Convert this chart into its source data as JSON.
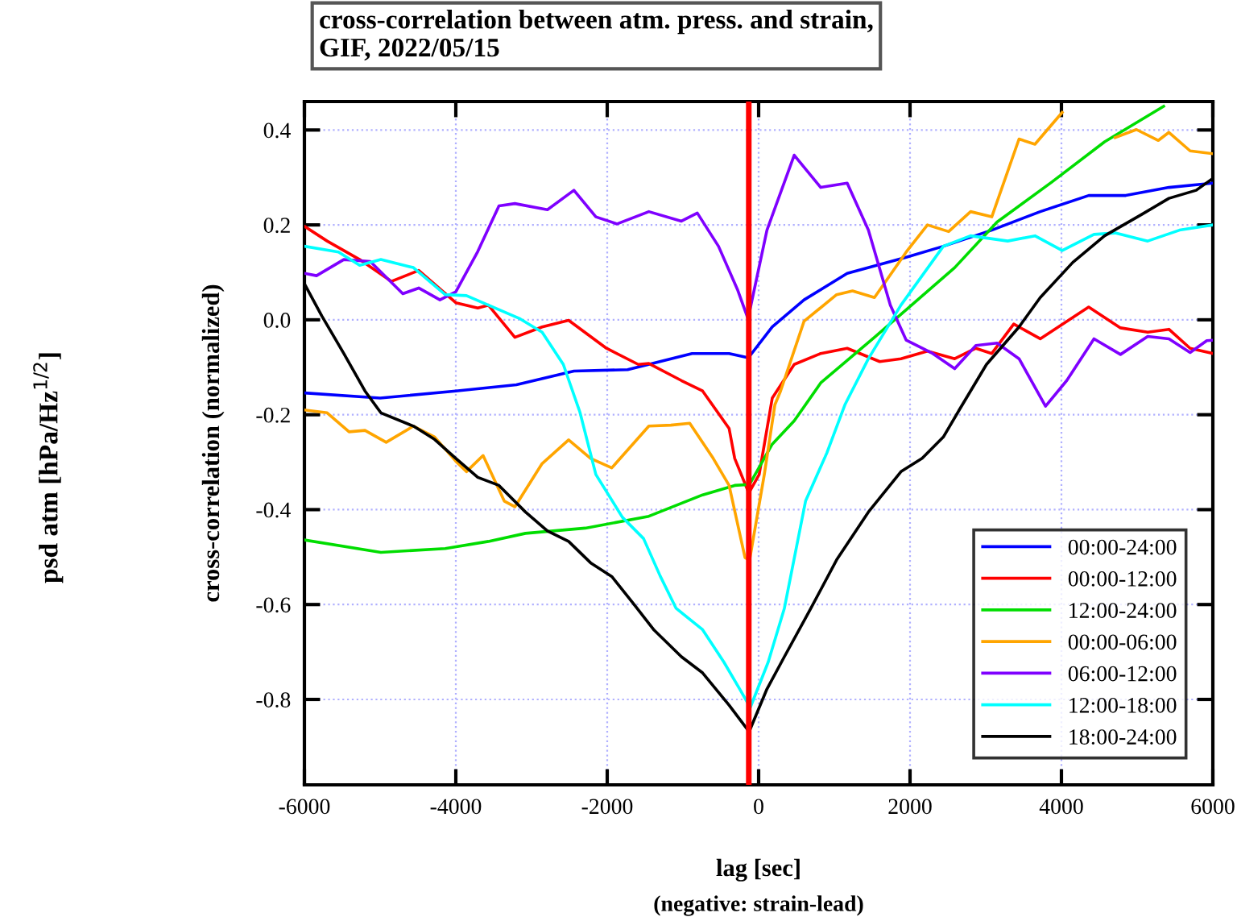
{
  "chart_data": {
    "type": "line",
    "title": "cross-correlation between atm. press. and strain,\nGIF, 2022/05/15",
    "xlabel": "lag [sec]",
    "ylabel": "cross-correlation (normalized)",
    "annotations": [
      "psd atm [hPa/Hz$^{1/2}$]",
      "(negative: strain-lead)"
    ],
    "xlim": [
      -6000,
      6000
    ],
    "ylim": [
      -0.98,
      0.46
    ],
    "xticks": [
      -6000,
      -4000,
      -2000,
      0,
      2000,
      4000,
      6000
    ],
    "yticks": [
      -0.8,
      -0.6,
      -0.4,
      -0.2,
      {
        "value": 0,
        "label": "0.0"
      },
      0.2,
      0.4
    ],
    "grid": true,
    "legend": "bottom right",
    "ref_lines": [
      {
        "axis": "x",
        "value": -130,
        "color": "#ff0000"
      }
    ],
    "series": [
      {
        "name": "00:00-24:00",
        "color": "#0000ff",
        "x": [
          -6000,
          -5000,
          -4000,
          -3200,
          -2440,
          -1730,
          -880,
          -390,
          -135,
          180,
          600,
          1170,
          1950,
          2440,
          3080,
          3720,
          4360,
          4850,
          5420,
          6000
        ],
        "values": [
          -0.154,
          -0.165,
          -0.15,
          -0.137,
          -0.108,
          -0.105,
          -0.071,
          -0.071,
          -0.08,
          -0.015,
          0.042,
          0.098,
          0.132,
          0.155,
          0.189,
          0.228,
          0.262,
          0.262,
          0.279,
          0.288
        ]
      },
      {
        "name": "00:00-12:00",
        "color": "#ff0000",
        "x": [
          -6000,
          -5700,
          -5270,
          -4850,
          -4490,
          -4000,
          -3710,
          -3570,
          -3220,
          -2860,
          -2510,
          -2010,
          -1590,
          -1450,
          -1020,
          -740,
          -390,
          -316,
          -130,
          7,
          180,
          470,
          820,
          1170,
          1600,
          1880,
          2230,
          2590,
          2870,
          3080,
          3370,
          3720,
          4360,
          4780,
          5140,
          5420,
          5700,
          6000
        ],
        "values": [
          0.197,
          0.166,
          0.127,
          0.081,
          0.104,
          0.036,
          0.025,
          0.031,
          -0.037,
          -0.015,
          -0.001,
          -0.06,
          -0.094,
          -0.092,
          -0.128,
          -0.15,
          -0.229,
          -0.292,
          -0.365,
          -0.326,
          -0.165,
          -0.094,
          -0.071,
          -0.06,
          -0.088,
          -0.082,
          -0.066,
          -0.082,
          -0.06,
          -0.071,
          -0.009,
          -0.04,
          0.027,
          -0.017,
          -0.026,
          -0.02,
          -0.06,
          -0.071
        ]
      },
      {
        "name": "12:00-24:00",
        "color": "#00dd00",
        "x": [
          -6000,
          -4990,
          -4140,
          -3570,
          -3080,
          -2290,
          -1450,
          -740,
          -316,
          -120,
          180,
          470,
          820,
          1530,
          2100,
          2590,
          3150,
          3870,
          4570,
          5350
        ],
        "values": [
          -0.464,
          -0.49,
          -0.482,
          -0.467,
          -0.45,
          -0.439,
          -0.414,
          -0.369,
          -0.349,
          -0.347,
          -0.262,
          -0.213,
          -0.133,
          -0.037,
          0.042,
          0.11,
          0.206,
          0.29,
          0.375,
          0.45
        ]
      },
      {
        "name": "00:00-06:00",
        "color": "#ffa500",
        "x": [
          -6000,
          -5700,
          -5410,
          -5200,
          -4920,
          -4560,
          -4280,
          -4000,
          -3860,
          -3640,
          -3360,
          -3220,
          -2860,
          -2510,
          -2220,
          -1940,
          -1450,
          -1160,
          -910,
          -600,
          -390,
          -180,
          -120,
          75,
          215,
          290,
          600,
          1030,
          1240,
          1530,
          1950,
          2230,
          2510,
          2800,
          3080,
          3440,
          3650,
          4010,
          4250,
          4440,
          4710,
          4990,
          5280,
          5420,
          5700,
          6000
        ],
        "values": [
          -0.19,
          -0.196,
          -0.236,
          -0.233,
          -0.258,
          -0.224,
          -0.247,
          -0.298,
          -0.32,
          -0.286,
          -0.382,
          -0.394,
          -0.303,
          -0.253,
          -0.292,
          -0.312,
          -0.224,
          -0.222,
          -0.218,
          -0.292,
          -0.349,
          -0.501,
          -0.507,
          -0.326,
          -0.179,
          -0.15,
          -0.003,
          0.053,
          0.061,
          0.047,
          0.143,
          0.2,
          0.186,
          0.228,
          0.217,
          0.381,
          0.37,
          0.437,
          null,
          null,
          0.384,
          0.401,
          0.378,
          0.395,
          0.356,
          0.35
        ]
      },
      {
        "name": "06:00-12:00",
        "color": "#7f00ff",
        "x": [
          -6000,
          -5840,
          -5480,
          -5130,
          -4700,
          -4490,
          -4210,
          -4000,
          -3710,
          -3430,
          -3220,
          -2790,
          -2440,
          -2150,
          -1870,
          -1450,
          -1020,
          -810,
          -530,
          -280,
          -140,
          110,
          470,
          820,
          1170,
          1450,
          1740,
          1950,
          2300,
          2590,
          2870,
          3150,
          3440,
          3790,
          4070,
          4430,
          4780,
          5140,
          5420,
          5700,
          5920,
          6000
        ],
        "values": [
          0.098,
          0.093,
          0.127,
          0.123,
          0.055,
          0.067,
          0.042,
          0.059,
          0.144,
          0.24,
          0.245,
          0.232,
          0.273,
          0.217,
          0.202,
          0.228,
          0.208,
          0.225,
          0.155,
          0.064,
          0.002,
          0.189,
          0.347,
          0.279,
          0.288,
          0.189,
          0.031,
          -0.043,
          -0.071,
          -0.103,
          -0.054,
          -0.049,
          -0.082,
          -0.182,
          -0.128,
          -0.04,
          -0.073,
          -0.035,
          -0.04,
          -0.069,
          -0.044,
          -0.043
        ]
      },
      {
        "name": "12:00-18:00",
        "color": "#00ffff",
        "x": [
          -6000,
          -5550,
          -5270,
          -4990,
          -4560,
          -4140,
          -3860,
          -3570,
          -3150,
          -2860,
          -2580,
          -2360,
          -2150,
          -1800,
          -1520,
          -1300,
          -1090,
          -740,
          -460,
          -250,
          -110,
          127,
          340,
          620,
          900,
          1140,
          1450,
          1880,
          2440,
          2800,
          3290,
          3650,
          4010,
          4430,
          4710,
          5140,
          5560,
          6000
        ],
        "values": [
          0.155,
          0.143,
          0.115,
          0.127,
          0.11,
          0.053,
          0.051,
          0.031,
          0.002,
          -0.026,
          -0.094,
          -0.195,
          -0.326,
          -0.416,
          -0.461,
          -0.54,
          -0.608,
          -0.653,
          -0.721,
          -0.778,
          -0.817,
          -0.721,
          -0.608,
          -0.382,
          -0.281,
          -0.179,
          -0.082,
          0.031,
          0.155,
          0.177,
          0.166,
          0.177,
          0.146,
          0.18,
          0.183,
          0.166,
          0.189,
          0.2
        ]
      },
      {
        "name": "18:00-24:00",
        "color": "#000000",
        "x": [
          -6000,
          -5770,
          -5480,
          -5200,
          -4990,
          -4560,
          -4280,
          -4000,
          -3710,
          -3430,
          -3080,
          -2790,
          -2510,
          -2220,
          -1940,
          -1660,
          -1380,
          -1020,
          -740,
          -390,
          -125,
          110,
          340,
          690,
          1030,
          1450,
          1880,
          2160,
          2440,
          2650,
          3010,
          3440,
          3720,
          4150,
          4570,
          5060,
          5420,
          5780,
          6000
        ],
        "values": [
          0.076,
          0.008,
          -0.071,
          -0.15,
          -0.196,
          -0.224,
          -0.252,
          -0.292,
          -0.332,
          -0.349,
          -0.405,
          -0.445,
          -0.467,
          -0.512,
          -0.541,
          -0.597,
          -0.654,
          -0.71,
          -0.744,
          -0.812,
          -0.868,
          -0.778,
          -0.71,
          -0.608,
          -0.506,
          -0.405,
          -0.32,
          -0.292,
          -0.247,
          -0.19,
          -0.094,
          -0.015,
          0.047,
          0.121,
          0.177,
          0.222,
          0.256,
          0.273,
          0.298
        ]
      }
    ]
  }
}
